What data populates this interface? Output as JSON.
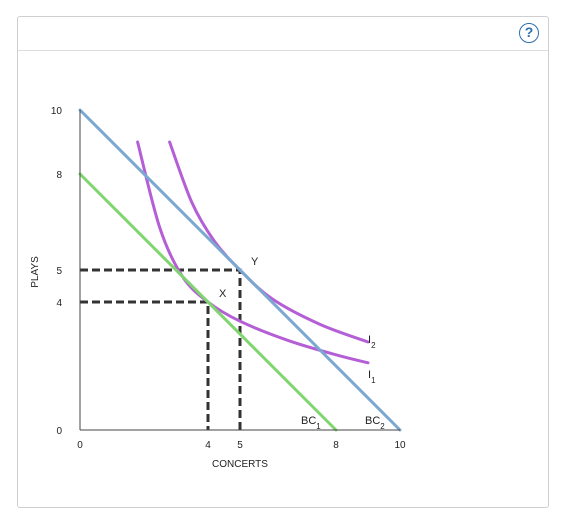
{
  "help": {
    "glyph": "?"
  },
  "chart_data": {
    "type": "line",
    "xlabel": "CONCERTS",
    "ylabel": "PLAYS",
    "xlim": [
      0,
      10
    ],
    "ylim": [
      0,
      10
    ],
    "x_ticks": [
      "0",
      "4",
      "5",
      "8",
      "10"
    ],
    "y_ticks": [
      "0",
      "4",
      "5",
      "8",
      "10"
    ],
    "series": [
      {
        "name": "BC",
        "sub": "1",
        "type": "line",
        "color": "#7fd66f",
        "points": [
          [
            0,
            8
          ],
          [
            8,
            0
          ]
        ]
      },
      {
        "name": "BC",
        "sub": "2",
        "type": "line",
        "color": "#7aa8d1",
        "points": [
          [
            0,
            10
          ],
          [
            10,
            0
          ]
        ]
      },
      {
        "name": "I",
        "sub": "1",
        "type": "curve",
        "color": "#b45fd6",
        "points": [
          [
            1.8,
            9.0
          ],
          [
            2.5,
            6.3
          ],
          [
            3.2,
            4.8
          ],
          [
            4.0,
            4.0
          ],
          [
            5.0,
            3.4
          ],
          [
            6.5,
            2.8
          ],
          [
            8.0,
            2.35
          ],
          [
            9.0,
            2.1
          ]
        ]
      },
      {
        "name": "I",
        "sub": "2",
        "type": "curve",
        "color": "#b45fd6",
        "points": [
          [
            2.8,
            9.0
          ],
          [
            3.5,
            7.1
          ],
          [
            4.2,
            5.9
          ],
          [
            5.0,
            5.0
          ],
          [
            6.0,
            4.1
          ],
          [
            7.5,
            3.3
          ],
          [
            9.0,
            2.75
          ]
        ]
      }
    ],
    "points": [
      {
        "label": "X",
        "x": 4,
        "y": 4
      },
      {
        "label": "Y",
        "x": 5,
        "y": 5
      }
    ]
  }
}
